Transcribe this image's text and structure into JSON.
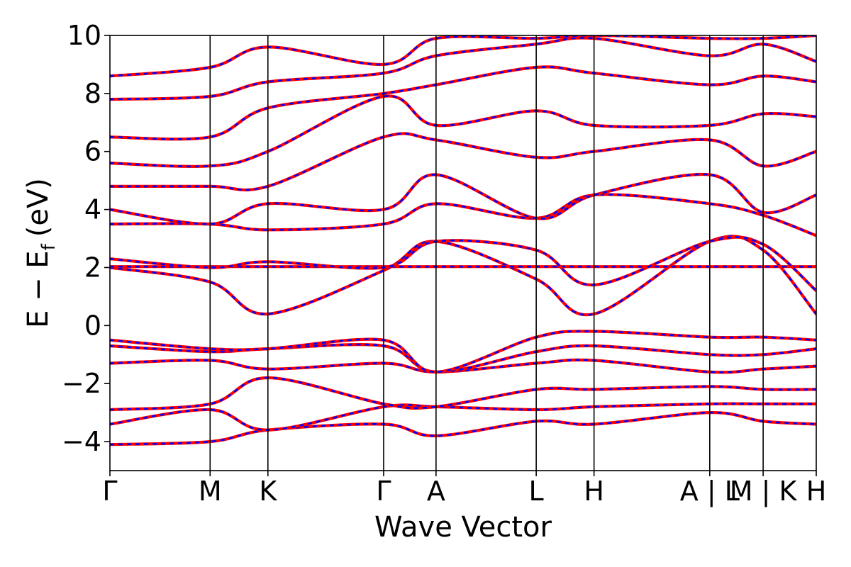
{
  "chart_data": {
    "type": "line",
    "title": "",
    "xlabel": "Wave Vector",
    "ylabel_main": "E − E",
    "ylabel_sub": "f",
    "ylabel_unit": "(eV)",
    "ylim": [
      -5,
      10
    ],
    "yticks": [
      -4,
      -2,
      0,
      2,
      4,
      6,
      8,
      10
    ],
    "ytick_labels": [
      "−4",
      "−2",
      "0",
      "2",
      "4",
      "6",
      "8",
      "10"
    ],
    "kpoint_labels": [
      "Γ",
      "M",
      "K",
      "Γ",
      "A",
      "L",
      "H",
      "A | L",
      "M | K",
      "H"
    ],
    "kpoint_positions": [
      0.0,
      1.0,
      1.577,
      2.732,
      3.255,
      4.255,
      4.832,
      5.987,
      6.52,
      7.05
    ],
    "series_styles": [
      {
        "color": "#ff0000",
        "style": "solid"
      },
      {
        "color": "#0000ff",
        "style": "dashed"
      }
    ],
    "bands": [
      [
        [
          0,
          -4.1
        ],
        [
          1,
          -4.0
        ],
        [
          1.577,
          -3.6
        ],
        [
          2.732,
          -3.4
        ],
        [
          3.255,
          -3.8
        ],
        [
          4.255,
          -3.3
        ],
        [
          4.832,
          -3.4
        ],
        [
          5.987,
          -3.0
        ],
        [
          6.52,
          -3.3
        ],
        [
          7.05,
          -3.4
        ]
      ],
      [
        [
          0,
          -3.4
        ],
        [
          1,
          -2.9
        ],
        [
          1.577,
          -3.6
        ],
        [
          2.732,
          -2.8
        ],
        [
          3.255,
          -2.8
        ],
        [
          4.255,
          -2.9
        ],
        [
          4.832,
          -2.8
        ],
        [
          5.987,
          -2.7
        ],
        [
          6.52,
          -2.7
        ],
        [
          7.05,
          -2.7
        ]
      ],
      [
        [
          0,
          -2.9
        ],
        [
          1,
          -2.7
        ],
        [
          1.577,
          -1.8
        ],
        [
          2.732,
          -2.7
        ],
        [
          3.255,
          -2.8
        ],
        [
          4.255,
          -2.2
        ],
        [
          4.832,
          -2.2
        ],
        [
          5.987,
          -2.1
        ],
        [
          6.52,
          -2.2
        ],
        [
          7.05,
          -2.2
        ]
      ],
      [
        [
          0,
          -1.3
        ],
        [
          1,
          -1.2
        ],
        [
          1.577,
          -1.5
        ],
        [
          2.732,
          -1.3
        ],
        [
          3.255,
          -1.6
        ],
        [
          4.255,
          -1.3
        ],
        [
          4.832,
          -1.2
        ],
        [
          5.987,
          -1.6
        ],
        [
          6.52,
          -1.5
        ],
        [
          7.05,
          -1.4
        ]
      ],
      [
        [
          0,
          -0.7
        ],
        [
          1,
          -0.9
        ],
        [
          1.577,
          -0.8
        ],
        [
          2.732,
          -0.7
        ],
        [
          3.255,
          -1.6
        ],
        [
          4.255,
          -0.9
        ],
        [
          4.832,
          -0.7
        ],
        [
          5.987,
          -1.0
        ],
        [
          6.52,
          -1.0
        ],
        [
          7.05,
          -0.8
        ]
      ],
      [
        [
          0,
          -0.5
        ],
        [
          1,
          -0.8
        ],
        [
          1.577,
          -0.8
        ],
        [
          2.732,
          -0.5
        ],
        [
          3.255,
          -1.6
        ],
        [
          4.255,
          -0.4
        ],
        [
          4.832,
          -0.2
        ],
        [
          5.987,
          -0.4
        ],
        [
          6.52,
          -0.4
        ],
        [
          7.05,
          -0.5
        ]
      ],
      [
        [
          0,
          2.0
        ],
        [
          1,
          1.5
        ],
        [
          1.577,
          0.4
        ],
        [
          2.732,
          1.9
        ],
        [
          3.255,
          2.9
        ],
        [
          4.255,
          1.6
        ],
        [
          4.832,
          0.4
        ],
        [
          5.987,
          2.9
        ],
        [
          6.52,
          2.6
        ],
        [
          7.05,
          0.4
        ]
      ],
      [
        [
          0,
          2.03
        ],
        [
          1,
          2.03
        ],
        [
          1.577,
          2.03
        ],
        [
          2.732,
          2.03
        ],
        [
          3.255,
          2.03
        ],
        [
          4.255,
          2.03
        ],
        [
          4.832,
          2.03
        ],
        [
          5.987,
          2.03
        ],
        [
          6.52,
          2.03
        ],
        [
          7.05,
          2.03
        ]
      ],
      [
        [
          0,
          2.3
        ],
        [
          1,
          2.0
        ],
        [
          1.577,
          2.2
        ],
        [
          2.732,
          2.0
        ],
        [
          3.255,
          2.9
        ],
        [
          4.255,
          2.6
        ],
        [
          4.832,
          1.4
        ],
        [
          5.987,
          2.9
        ],
        [
          6.52,
          2.8
        ],
        [
          7.05,
          1.2
        ]
      ],
      [
        [
          0,
          3.5
        ],
        [
          1,
          3.5
        ],
        [
          1.577,
          3.3
        ],
        [
          2.732,
          3.5
        ],
        [
          3.255,
          4.2
        ],
        [
          4.255,
          3.7
        ],
        [
          4.832,
          4.5
        ],
        [
          5.987,
          4.2
        ],
        [
          6.52,
          3.8
        ],
        [
          7.05,
          3.1
        ]
      ],
      [
        [
          0,
          4.0
        ],
        [
          1,
          3.5
        ],
        [
          1.577,
          4.2
        ],
        [
          2.732,
          4.0
        ],
        [
          3.255,
          5.2
        ],
        [
          4.255,
          3.7
        ],
        [
          4.832,
          4.5
        ],
        [
          5.987,
          5.2
        ],
        [
          6.52,
          3.9
        ],
        [
          7.05,
          4.5
        ]
      ],
      [
        [
          0,
          4.8
        ],
        [
          1,
          4.8
        ],
        [
          1.577,
          4.8
        ],
        [
          2.732,
          6.5
        ],
        [
          3.255,
          6.4
        ],
        [
          4.255,
          5.8
        ],
        [
          4.832,
          6.0
        ],
        [
          5.987,
          6.4
        ],
        [
          6.52,
          5.5
        ],
        [
          7.05,
          6.0
        ]
      ],
      [
        [
          0,
          5.6
        ],
        [
          1,
          5.5
        ],
        [
          1.577,
          6.0
        ],
        [
          2.732,
          7.9
        ],
        [
          3.255,
          6.9
        ],
        [
          4.255,
          7.4
        ],
        [
          4.832,
          6.9
        ],
        [
          5.987,
          6.9
        ],
        [
          6.52,
          7.3
        ],
        [
          7.05,
          7.2
        ]
      ],
      [
        [
          0,
          6.5
        ],
        [
          1,
          6.5
        ],
        [
          1.577,
          7.5
        ],
        [
          2.732,
          8.0
        ],
        [
          3.255,
          8.3
        ],
        [
          4.255,
          8.9
        ],
        [
          4.832,
          8.7
        ],
        [
          5.987,
          8.3
        ],
        [
          6.52,
          8.6
        ],
        [
          7.05,
          8.4
        ]
      ],
      [
        [
          0,
          7.8
        ],
        [
          1,
          7.9
        ],
        [
          1.577,
          8.4
        ],
        [
          2.732,
          8.7
        ],
        [
          3.255,
          9.3
        ],
        [
          4.255,
          9.7
        ],
        [
          4.832,
          9.9
        ],
        [
          5.987,
          9.3
        ],
        [
          6.52,
          9.7
        ],
        [
          7.05,
          9.1
        ]
      ],
      [
        [
          0,
          8.6
        ],
        [
          1,
          8.9
        ],
        [
          1.577,
          9.6
        ],
        [
          2.732,
          9.0
        ],
        [
          3.255,
          9.9
        ],
        [
          4.255,
          9.9
        ],
        [
          4.832,
          10.0
        ],
        [
          5.987,
          9.9
        ],
        [
          6.52,
          9.9
        ],
        [
          7.05,
          10.0
        ]
      ]
    ]
  }
}
